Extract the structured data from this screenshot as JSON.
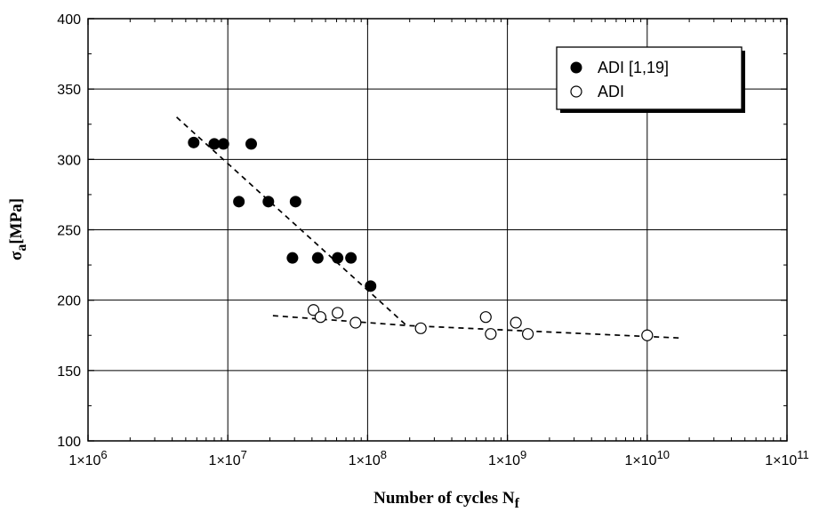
{
  "chart_data": {
    "type": "scatter",
    "x_scale": "log",
    "xlim": [
      1000000,
      100000000000
    ],
    "ylim": [
      100,
      400
    ],
    "x_ticks": [
      {
        "value": 1000000,
        "mantissa": "1×10",
        "exp": "6"
      },
      {
        "value": 10000000,
        "mantissa": "1×10",
        "exp": "7"
      },
      {
        "value": 100000000,
        "mantissa": "1×10",
        "exp": "8"
      },
      {
        "value": 1000000000,
        "mantissa": "1×10",
        "exp": "9"
      },
      {
        "value": 10000000000,
        "mantissa": "1×10",
        "exp": "10"
      },
      {
        "value": 100000000000,
        "mantissa": "1×10",
        "exp": "11"
      }
    ],
    "y_ticks": [
      {
        "value": 100,
        "label": "100"
      },
      {
        "value": 150,
        "label": "150"
      },
      {
        "value": 200,
        "label": "200"
      },
      {
        "value": 250,
        "label": "250"
      },
      {
        "value": 300,
        "label": "300"
      },
      {
        "value": 350,
        "label": "350"
      },
      {
        "value": 400,
        "label": "400"
      }
    ],
    "xlabel": {
      "main": "Number of cycles N",
      "sub": "f"
    },
    "ylabel": {
      "main": "σ",
      "sub": "a",
      "rest": "[MPa]"
    },
    "grid": true,
    "legend_position": "top-right",
    "series": [
      {
        "name": "ADI [1,19]",
        "marker": "filled-circle",
        "color": "#000000",
        "points": [
          [
            5700000,
            312
          ],
          [
            8000000,
            311
          ],
          [
            9300000,
            311
          ],
          [
            14700000,
            311
          ],
          [
            12000000,
            270
          ],
          [
            19500000,
            270
          ],
          [
            30500000,
            270
          ],
          [
            29000000,
            230
          ],
          [
            44000000,
            230
          ],
          [
            61000000,
            230
          ],
          [
            76000000,
            230
          ],
          [
            105000000,
            210
          ]
        ]
      },
      {
        "name": "ADI",
        "marker": "open-circle",
        "color": "#000000",
        "points": [
          [
            41000000,
            193
          ],
          [
            46000000,
            188
          ],
          [
            61000000,
            191
          ],
          [
            82000000,
            184
          ],
          [
            240000000,
            180
          ],
          [
            700000000,
            188
          ],
          [
            760000000,
            176
          ],
          [
            1150000000,
            184
          ],
          [
            1400000000,
            176
          ],
          [
            10000000000,
            175
          ]
        ]
      }
    ],
    "trend_lines": [
      {
        "style": "dashed",
        "points": [
          [
            4300000,
            330
          ],
          [
            190000000,
            182
          ]
        ]
      },
      {
        "style": "dashed",
        "points": [
          [
            21000000,
            189
          ],
          [
            190000000,
            182
          ],
          [
            18000000000,
            173
          ]
        ]
      }
    ]
  }
}
